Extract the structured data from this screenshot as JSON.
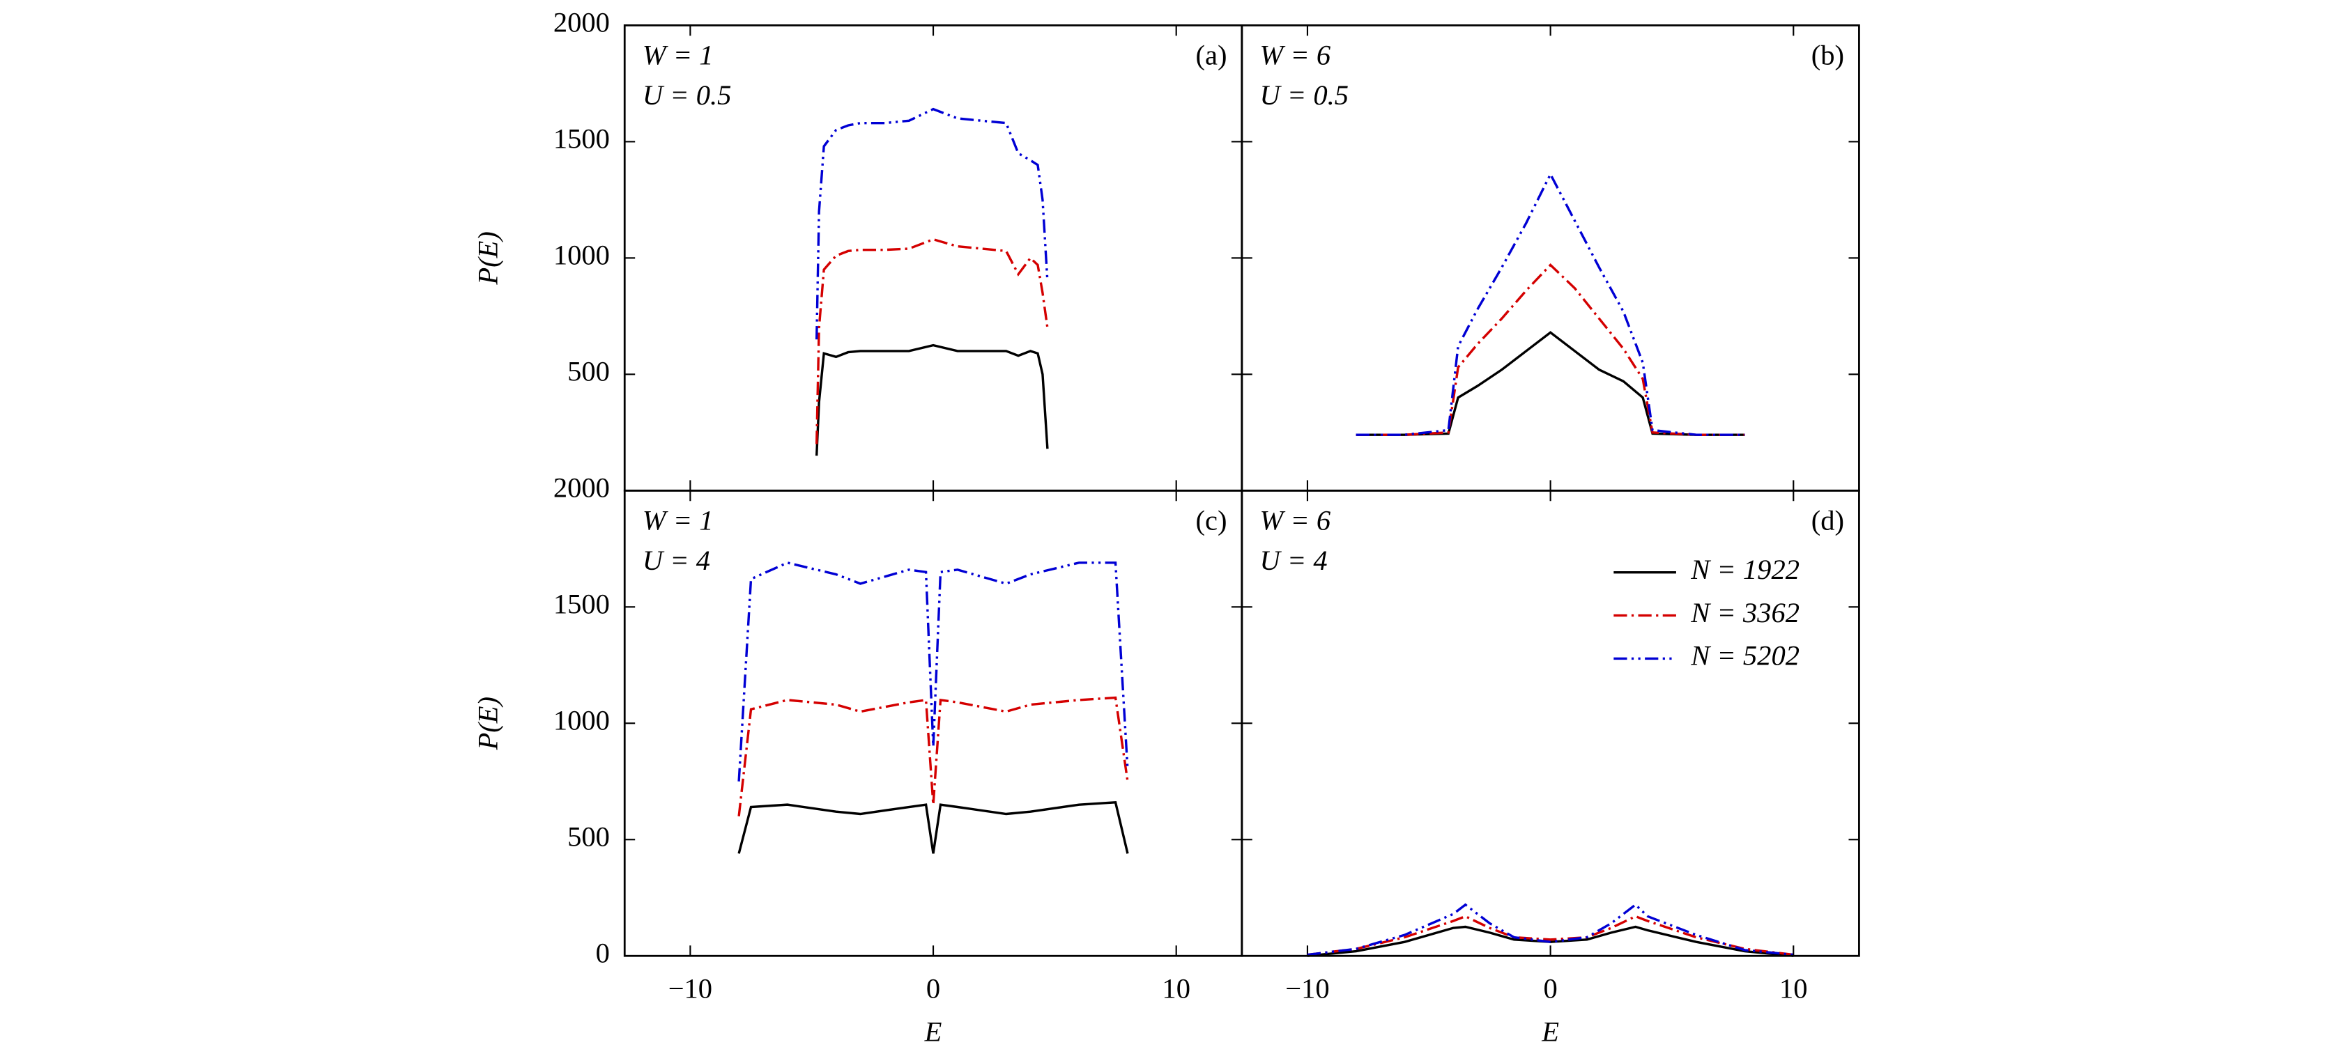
{
  "chart_data": [
    {
      "type": "line",
      "panel_label": "(a)",
      "annotations": [
        "W = 1",
        "U = 0.5"
      ],
      "ylabel": "P(E)",
      "xlim": [
        -12.7,
        12.7
      ],
      "ylim": [
        0,
        2000
      ],
      "yticks": [
        500,
        1000,
        1500,
        2000
      ],
      "x": [
        -4.8,
        -4.7,
        -4.5,
        -4.0,
        -3.5,
        -3,
        -2,
        -1,
        0,
        1,
        2,
        3,
        3.5,
        4.0,
        4.3,
        4.5,
        4.7
      ],
      "series": [
        {
          "color": "#000000",
          "linestyle": "solid",
          "values": [
            150,
            380,
            590,
            575,
            595,
            600,
            600,
            600,
            625,
            600,
            600,
            600,
            580,
            600,
            590,
            500,
            180
          ]
        },
        {
          "color": "#d40000",
          "linestyle": "dashdot",
          "values": [
            200,
            700,
            950,
            1010,
            1030,
            1035,
            1035,
            1040,
            1080,
            1050,
            1040,
            1030,
            930,
            1000,
            970,
            850,
            700
          ]
        },
        {
          "color": "#0000d4",
          "linestyle": "dashdotdot",
          "values": [
            650,
            1200,
            1480,
            1550,
            1570,
            1580,
            1580,
            1590,
            1640,
            1600,
            1590,
            1580,
            1450,
            1420,
            1400,
            1250,
            900
          ]
        }
      ]
    },
    {
      "type": "line",
      "panel_label": "(b)",
      "annotations": [
        "W = 6",
        "U = 0.5"
      ],
      "xlim": [
        -12.7,
        12.7
      ],
      "ylim": [
        0,
        2000
      ],
      "x": [
        -8,
        -6,
        -4.2,
        -3.8,
        -3,
        -2,
        -1,
        0,
        1,
        2,
        3,
        3.8,
        4.2,
        6,
        8
      ],
      "series": [
        {
          "color": "#000000",
          "linestyle": "solid",
          "values": [
            240,
            240,
            245,
            400,
            450,
            520,
            600,
            680,
            600,
            520,
            470,
            400,
            245,
            240,
            240
          ]
        },
        {
          "color": "#d40000",
          "linestyle": "dashdot",
          "values": [
            240,
            240,
            250,
            530,
            630,
            740,
            860,
            970,
            870,
            740,
            610,
            480,
            250,
            240,
            240
          ]
        },
        {
          "color": "#0000d4",
          "linestyle": "dashdotdot",
          "values": [
            240,
            240,
            260,
            620,
            780,
            960,
            1150,
            1360,
            1160,
            960,
            770,
            550,
            260,
            240,
            240
          ]
        }
      ]
    },
    {
      "type": "line",
      "panel_label": "(c)",
      "annotations": [
        "W = 1",
        "U = 4"
      ],
      "ylabel": "P(E)",
      "xlabel": "E",
      "xlim": [
        -12.7,
        12.7
      ],
      "ylim": [
        0,
        2000
      ],
      "yticks": [
        0,
        500,
        1000,
        1500,
        2000
      ],
      "xticks": [
        {
          "value": -10,
          "label": "−10"
        },
        0,
        10
      ],
      "x": [
        -8,
        -7.5,
        -6,
        -4,
        -3,
        -1,
        -0.3,
        0,
        0.3,
        1,
        3,
        4,
        6,
        7.5,
        8
      ],
      "series": [
        {
          "color": "#000000",
          "linestyle": "solid",
          "values": [
            440,
            640,
            650,
            620,
            610,
            640,
            650,
            440,
            650,
            640,
            610,
            620,
            650,
            660,
            440
          ]
        },
        {
          "color": "#d40000",
          "linestyle": "dashdot",
          "values": [
            600,
            1060,
            1100,
            1080,
            1050,
            1090,
            1100,
            650,
            1100,
            1090,
            1050,
            1080,
            1100,
            1110,
            750
          ]
        },
        {
          "color": "#0000d4",
          "linestyle": "dashdotdot",
          "values": [
            750,
            1620,
            1690,
            1640,
            1600,
            1660,
            1650,
            900,
            1650,
            1660,
            1600,
            1640,
            1690,
            1690,
            800
          ]
        }
      ]
    },
    {
      "type": "line",
      "panel_label": "(d)",
      "annotations": [
        "W = 6",
        "U = 4"
      ],
      "xlabel": "E",
      "legend": "upper right",
      "xlim": [
        -12.7,
        12.7
      ],
      "ylim": [
        0,
        2000
      ],
      "xticks": [
        {
          "value": -10,
          "label": "−10"
        },
        0,
        10
      ],
      "x": [
        -10,
        -8,
        -6,
        -4,
        -3.5,
        -2.5,
        -1.5,
        0,
        1.5,
        2.5,
        3.5,
        4,
        6,
        8,
        10
      ],
      "series": [
        {
          "name": "N = 1922",
          "color": "#000000",
          "linestyle": "solid",
          "values": [
            0,
            20,
            60,
            120,
            125,
            100,
            70,
            60,
            70,
            100,
            125,
            110,
            60,
            20,
            0
          ]
        },
        {
          "name": "N = 3362",
          "color": "#d40000",
          "linestyle": "dashdot",
          "values": [
            5,
            30,
            80,
            150,
            170,
            120,
            80,
            70,
            80,
            120,
            170,
            150,
            80,
            30,
            5
          ]
        },
        {
          "name": "N = 5202",
          "color": "#0000d4",
          "linestyle": "dashdotdot",
          "values": [
            5,
            30,
            90,
            180,
            220,
            140,
            80,
            60,
            80,
            140,
            220,
            170,
            90,
            25,
            5
          ]
        }
      ]
    }
  ]
}
